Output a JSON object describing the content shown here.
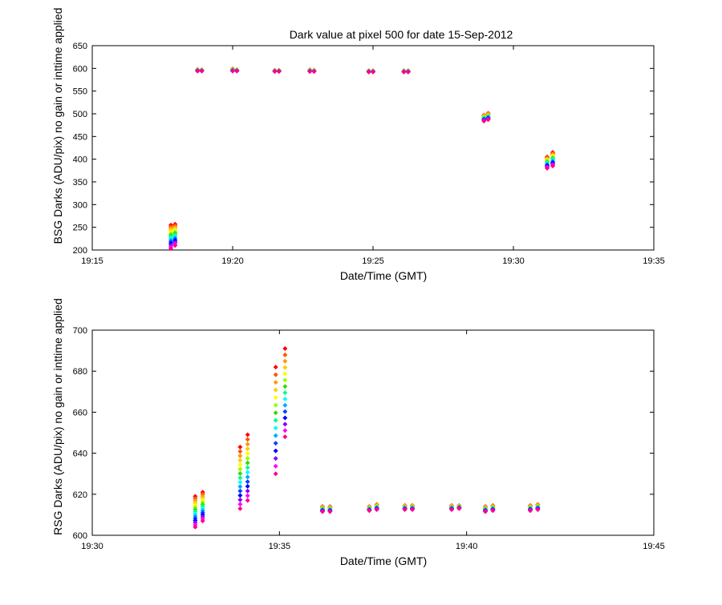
{
  "chart_data": [
    {
      "type": "scatter",
      "title": "Dark value at pixel 500 for date 15-Sep-2012",
      "xlabel": "Date/Time (GMT)",
      "ylabel": "BSG Darks (ADU/pix) no gain or inttime applied",
      "x_unit": "minutes after 19:00 GMT",
      "xlim": [
        15,
        35
      ],
      "ylim": [
        200,
        650
      ],
      "x_ticks": [
        15,
        20,
        25,
        30,
        35
      ],
      "x_tick_labels": [
        "19:15",
        "19:20",
        "19:25",
        "19:30",
        "19:35"
      ],
      "y_ticks": [
        200,
        250,
        300,
        350,
        400,
        450,
        500,
        550,
        600,
        650
      ],
      "y_tick_labels": [
        "200",
        "250",
        "300",
        "350",
        "400",
        "450",
        "500",
        "550",
        "600",
        "650"
      ],
      "grid": false,
      "clusters": [
        {
          "x": 17.8,
          "ymin": 203,
          "ymax": 255
        },
        {
          "x": 17.95,
          "ymin": 210,
          "ymax": 257
        },
        {
          "x": 18.75,
          "ymin": 594,
          "ymax": 598
        },
        {
          "x": 18.9,
          "ymin": 594,
          "ymax": 597
        },
        {
          "x": 20.0,
          "ymin": 594,
          "ymax": 599
        },
        {
          "x": 20.15,
          "ymin": 594,
          "ymax": 597
        },
        {
          "x": 21.5,
          "ymin": 593,
          "ymax": 596
        },
        {
          "x": 21.65,
          "ymin": 593,
          "ymax": 596
        },
        {
          "x": 22.75,
          "ymin": 593,
          "ymax": 597
        },
        {
          "x": 22.9,
          "ymin": 593,
          "ymax": 596
        },
        {
          "x": 24.85,
          "ymin": 592,
          "ymax": 595
        },
        {
          "x": 25.0,
          "ymin": 592,
          "ymax": 595
        },
        {
          "x": 26.1,
          "ymin": 592,
          "ymax": 595
        },
        {
          "x": 26.25,
          "ymin": 592,
          "ymax": 595
        },
        {
          "x": 28.95,
          "ymin": 484,
          "ymax": 497
        },
        {
          "x": 29.1,
          "ymin": 487,
          "ymax": 501
        },
        {
          "x": 31.2,
          "ymin": 380,
          "ymax": 405
        },
        {
          "x": 31.4,
          "ymin": 385,
          "ymax": 415
        }
      ]
    },
    {
      "type": "scatter",
      "title": "",
      "xlabel": "Date/Time (GMT)",
      "ylabel": "RSG Darks (ADU/pix) no gain or inttime applied",
      "x_unit": "minutes after 19:00 GMT",
      "xlim": [
        30,
        45
      ],
      "ylim": [
        600,
        700
      ],
      "x_ticks": [
        30,
        35,
        40,
        45
      ],
      "x_tick_labels": [
        "19:30",
        "19:35",
        "19:40",
        "19:45"
      ],
      "y_ticks": [
        600,
        620,
        640,
        660,
        680,
        700
      ],
      "y_tick_labels": [
        "600",
        "620",
        "640",
        "660",
        "680",
        "700"
      ],
      "grid": false,
      "clusters": [
        {
          "x": 32.75,
          "ymin": 604,
          "ymax": 619
        },
        {
          "x": 32.95,
          "ymin": 607,
          "ymax": 621
        },
        {
          "x": 33.95,
          "ymin": 613,
          "ymax": 643
        },
        {
          "x": 34.15,
          "ymin": 617,
          "ymax": 649
        },
        {
          "x": 34.9,
          "ymin": 630,
          "ymax": 682
        },
        {
          "x": 35.15,
          "ymin": 648,
          "ymax": 691
        },
        {
          "x": 36.15,
          "ymin": 611.5,
          "ymax": 614
        },
        {
          "x": 36.35,
          "ymin": 611.5,
          "ymax": 614
        },
        {
          "x": 37.4,
          "ymin": 612,
          "ymax": 614
        },
        {
          "x": 37.6,
          "ymin": 612.5,
          "ymax": 615
        },
        {
          "x": 38.35,
          "ymin": 612.5,
          "ymax": 614.5
        },
        {
          "x": 38.55,
          "ymin": 612.5,
          "ymax": 614.5
        },
        {
          "x": 39.6,
          "ymin": 612.5,
          "ymax": 614.5
        },
        {
          "x": 39.8,
          "ymin": 613,
          "ymax": 614.5
        },
        {
          "x": 40.5,
          "ymin": 611.5,
          "ymax": 614
        },
        {
          "x": 40.7,
          "ymin": 612,
          "ymax": 614.5
        },
        {
          "x": 41.7,
          "ymin": 612,
          "ymax": 614.5
        },
        {
          "x": 41.9,
          "ymin": 612.5,
          "ymax": 615
        }
      ]
    }
  ],
  "series_colors": [
    "#ff0000",
    "#ff5500",
    "#ff9900",
    "#ffcc00",
    "#ffff00",
    "#99ff00",
    "#33dd00",
    "#00ff88",
    "#00ffff",
    "#00aaff",
    "#0044ff",
    "#0000ff",
    "#8800ff",
    "#ff00ff",
    "#ff0088"
  ],
  "axis_color": "#000000"
}
